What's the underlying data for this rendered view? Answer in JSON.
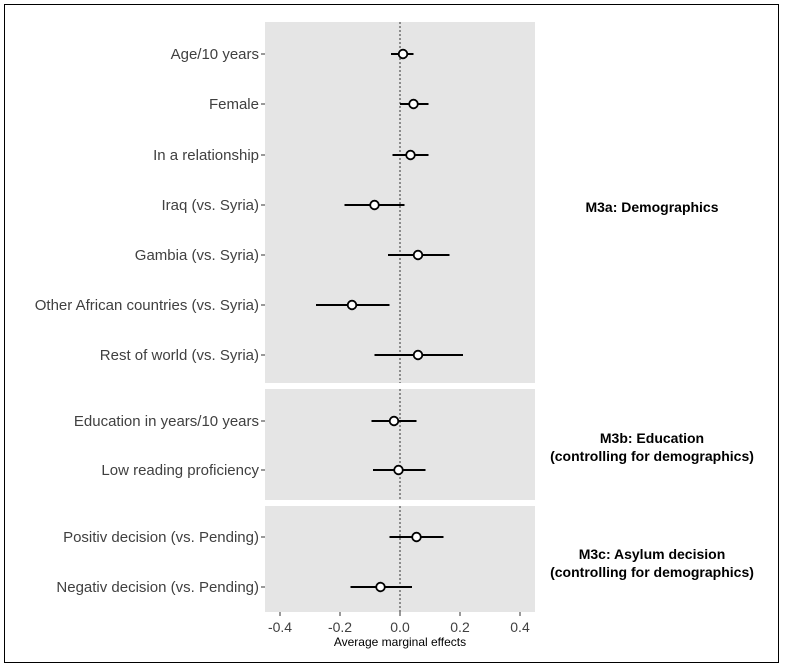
{
  "chart_data": {
    "type": "scatter",
    "subtype": "coefficient-plot-with-intervals",
    "xlabel": "Average marginal effects",
    "xlim": [
      -0.45,
      0.45
    ],
    "xticks": [
      -0.4,
      -0.2,
      0.0,
      0.2,
      0.4
    ],
    "xtick_labels": [
      "-0.4",
      "-0.2",
      "0.0",
      "0.2",
      "0.4"
    ],
    "reference_line": 0,
    "grid": false,
    "panels": [
      {
        "label_lines": [
          "M3a: Demographics"
        ],
        "rows": [
          {
            "label": "Age/10 years",
            "estimate": 0.01,
            "low": -0.03,
            "high": 0.045
          },
          {
            "label": "Female",
            "estimate": 0.045,
            "low": 0.0,
            "high": 0.095
          },
          {
            "label": "In a relationship",
            "estimate": 0.035,
            "low": -0.025,
            "high": 0.095
          },
          {
            "label": "Iraq (vs. Syria)",
            "estimate": -0.085,
            "low": -0.185,
            "high": 0.015
          },
          {
            "label": "Gambia (vs. Syria)",
            "estimate": 0.06,
            "low": -0.04,
            "high": 0.165
          },
          {
            "label": "Other African countries (vs. Syria)",
            "estimate": -0.16,
            "low": -0.28,
            "high": -0.035
          },
          {
            "label": "Rest of world (vs. Syria)",
            "estimate": 0.06,
            "low": -0.085,
            "high": 0.21
          }
        ]
      },
      {
        "label_lines": [
          "M3b: Education",
          "(controlling for demographics)"
        ],
        "rows": [
          {
            "label": "Education in years/10 years",
            "estimate": -0.02,
            "low": -0.095,
            "high": 0.055
          },
          {
            "label": "Low reading proficiency",
            "estimate": -0.005,
            "low": -0.09,
            "high": 0.085
          }
        ]
      },
      {
        "label_lines": [
          "M3c: Asylum decision",
          "(controlling for demographics)"
        ],
        "rows": [
          {
            "label": "Positiv decision (vs. Pending)",
            "estimate": 0.055,
            "low": -0.035,
            "high": 0.145
          },
          {
            "label": "Negativ decision (vs. Pending)",
            "estimate": -0.065,
            "low": -0.165,
            "high": 0.04
          }
        ]
      }
    ]
  }
}
